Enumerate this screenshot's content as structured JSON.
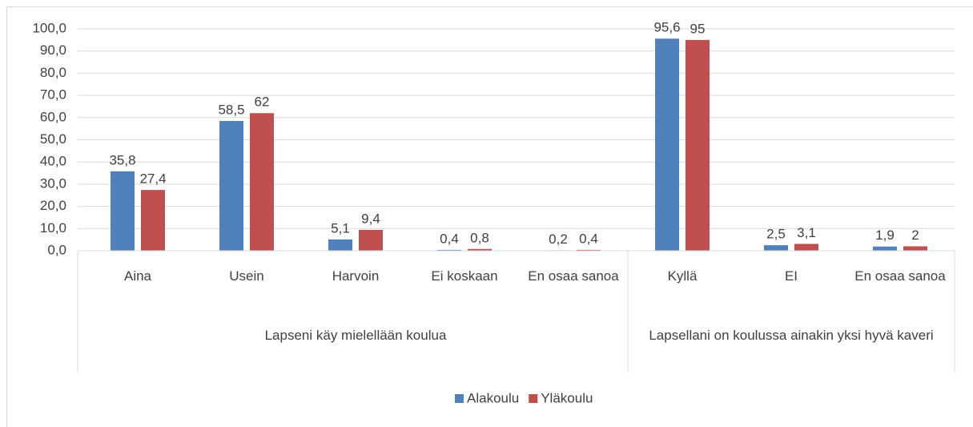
{
  "chart_data": {
    "type": "bar",
    "groups": [
      {
        "label": "Lapseni käy mielellään koulua",
        "categories": [
          "Aina",
          "Usein",
          "Harvoin",
          "Ei koskaan",
          "En osaa sanoa"
        ]
      },
      {
        "label": "Lapsellani on koulussa ainakin yksi hyvä kaveri",
        "categories": [
          "Kyllä",
          "EI",
          "En osaa sanoa"
        ]
      }
    ],
    "series": [
      {
        "name": "Alakoulu",
        "color": "#4f81bd",
        "values": [
          35.8,
          58.5,
          5.1,
          0.4,
          0.2,
          95.6,
          2.5,
          1.9
        ],
        "value_labels": [
          "35,8",
          "58,5",
          "5,1",
          "0,4",
          "0,2",
          "95,6",
          "2,5",
          "1,9"
        ]
      },
      {
        "name": "Yläkoulu",
        "color": "#c0504d",
        "values": [
          27.4,
          62,
          9.4,
          0.8,
          0.4,
          95,
          3.1,
          2
        ],
        "value_labels": [
          "27,4",
          "62",
          "9,4",
          "0,8",
          "0,4",
          "95",
          "3,1",
          "2"
        ]
      }
    ],
    "ylim": [
      0,
      100
    ],
    "yticks": [
      {
        "value": 0,
        "label": "0,0"
      },
      {
        "value": 10,
        "label": "10,0"
      },
      {
        "value": 20,
        "label": "20,0"
      },
      {
        "value": 30,
        "label": "30,0"
      },
      {
        "value": 40,
        "label": "40,0"
      },
      {
        "value": 50,
        "label": "50,0"
      },
      {
        "value": 60,
        "label": "60,0"
      },
      {
        "value": 70,
        "label": "70,0"
      },
      {
        "value": 80,
        "label": "80,0"
      },
      {
        "value": 90,
        "label": "90,0"
      },
      {
        "value": 100,
        "label": "100,0"
      }
    ],
    "grid": true,
    "legend": "bottom"
  }
}
